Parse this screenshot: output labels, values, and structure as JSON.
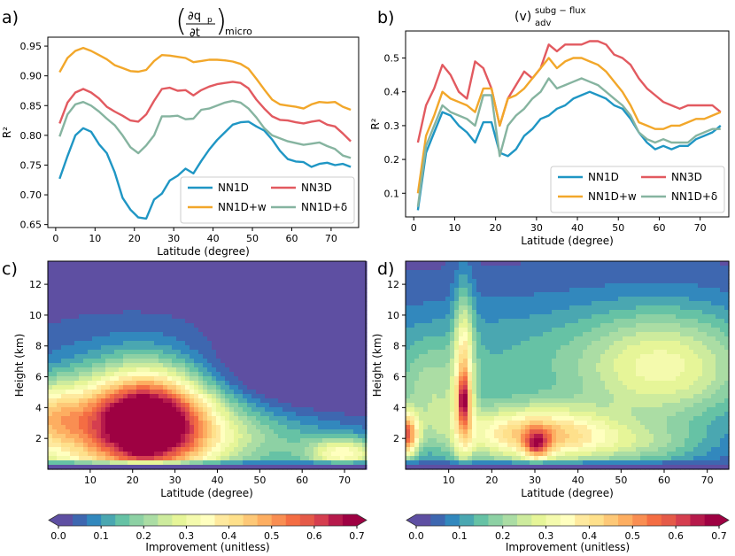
{
  "panels": {
    "a": {
      "letter": "a)",
      "title_num": "∂q",
      "title_sub": "p",
      "title_den": "∂t",
      "title_tag": "micro"
    },
    "b": {
      "letter": "b)",
      "title_main": "(v)",
      "title_sup": "subg − flux",
      "title_sub": "adv"
    },
    "c": {
      "letter": "c)"
    },
    "d": {
      "letter": "d)"
    }
  },
  "colors": {
    "NN1D": "#1f96c4",
    "NN3D": "#e25a60",
    "NN1D+w": "#f2a72a",
    "NN1D+δ": "#86b4a0"
  },
  "chart_data": [
    {
      "id": "a",
      "type": "line",
      "xlabel": "Latitude (degree)",
      "ylabel": "R²",
      "xlim": [
        -2,
        77
      ],
      "ylim": [
        0.645,
        0.965
      ],
      "xticks": [
        0,
        10,
        20,
        30,
        40,
        50,
        60,
        70
      ],
      "yticks": [
        0.65,
        0.7,
        0.75,
        0.8,
        0.85,
        0.9,
        0.95
      ],
      "ytick_labels": [
        "0.65",
        "0.70",
        "0.75",
        "0.80",
        "0.85",
        "0.90",
        "0.95"
      ],
      "legend": [
        "NN1D",
        "NN3D",
        "NN1D+w",
        "NN1D+δ"
      ],
      "x": [
        1,
        3,
        5,
        7,
        9,
        11,
        13,
        15,
        17,
        19,
        21,
        23,
        25,
        27,
        29,
        31,
        33,
        35,
        37,
        39,
        41,
        43,
        45,
        47,
        49,
        51,
        53,
        55,
        57,
        59,
        61,
        63,
        65,
        67,
        69,
        71,
        73,
        75
      ],
      "series": [
        {
          "name": "NN1D",
          "values": [
            0.727,
            0.765,
            0.8,
            0.812,
            0.806,
            0.785,
            0.77,
            0.738,
            0.695,
            0.675,
            0.662,
            0.66,
            0.692,
            0.702,
            0.724,
            0.732,
            0.744,
            0.736,
            0.757,
            0.776,
            0.792,
            0.805,
            0.818,
            0.822,
            0.823,
            0.815,
            0.808,
            0.793,
            0.774,
            0.76,
            0.756,
            0.755,
            0.747,
            0.752,
            0.754,
            0.75,
            0.752,
            0.747
          ]
        },
        {
          "name": "NN3D",
          "values": [
            0.82,
            0.855,
            0.872,
            0.878,
            0.872,
            0.862,
            0.848,
            0.84,
            0.833,
            0.825,
            0.823,
            0.835,
            0.858,
            0.878,
            0.88,
            0.875,
            0.876,
            0.867,
            0.876,
            0.882,
            0.886,
            0.888,
            0.89,
            0.888,
            0.879,
            0.86,
            0.845,
            0.832,
            0.826,
            0.825,
            0.822,
            0.82,
            0.823,
            0.825,
            0.818,
            0.815,
            0.803,
            0.79
          ]
        },
        {
          "name": "NN1D+w",
          "values": [
            0.906,
            0.93,
            0.942,
            0.947,
            0.942,
            0.935,
            0.928,
            0.918,
            0.913,
            0.908,
            0.907,
            0.91,
            0.925,
            0.935,
            0.934,
            0.932,
            0.93,
            0.923,
            0.925,
            0.927,
            0.927,
            0.926,
            0.924,
            0.92,
            0.912,
            0.895,
            0.877,
            0.86,
            0.852,
            0.85,
            0.848,
            0.845,
            0.852,
            0.856,
            0.855,
            0.856,
            0.848,
            0.843
          ]
        },
        {
          "name": "NN1D+δ",
          "values": [
            0.798,
            0.835,
            0.852,
            0.856,
            0.85,
            0.84,
            0.828,
            0.817,
            0.8,
            0.78,
            0.77,
            0.783,
            0.8,
            0.832,
            0.832,
            0.833,
            0.827,
            0.828,
            0.843,
            0.845,
            0.85,
            0.855,
            0.858,
            0.855,
            0.845,
            0.83,
            0.812,
            0.8,
            0.795,
            0.79,
            0.787,
            0.784,
            0.786,
            0.788,
            0.782,
            0.777,
            0.766,
            0.762
          ]
        }
      ]
    },
    {
      "id": "b",
      "type": "line",
      "xlabel": "Latitude (degree)",
      "ylabel": "R²",
      "xlim": [
        -2,
        77
      ],
      "ylim": [
        0.03,
        0.58
      ],
      "xticks": [
        0,
        10,
        20,
        30,
        40,
        50,
        60,
        70
      ],
      "yticks": [
        0.1,
        0.2,
        0.3,
        0.4,
        0.5
      ],
      "ytick_labels": [
        "0.1",
        "0.2",
        "0.3",
        "0.4",
        "0.5"
      ],
      "legend": [
        "NN1D",
        "NN3D",
        "NN1D+w",
        "NN1D+δ"
      ],
      "x": [
        1,
        3,
        5,
        7,
        9,
        11,
        13,
        15,
        17,
        19,
        21,
        23,
        25,
        27,
        29,
        31,
        33,
        35,
        37,
        39,
        41,
        43,
        45,
        47,
        49,
        51,
        53,
        55,
        57,
        59,
        61,
        63,
        65,
        67,
        69,
        71,
        73,
        75
      ],
      "series": [
        {
          "name": "NN1D",
          "values": [
            0.05,
            0.22,
            0.28,
            0.34,
            0.33,
            0.3,
            0.28,
            0.25,
            0.31,
            0.31,
            0.22,
            0.21,
            0.23,
            0.27,
            0.29,
            0.32,
            0.33,
            0.35,
            0.36,
            0.38,
            0.39,
            0.4,
            0.39,
            0.38,
            0.36,
            0.35,
            0.32,
            0.28,
            0.25,
            0.23,
            0.24,
            0.23,
            0.24,
            0.24,
            0.26,
            0.27,
            0.28,
            0.3
          ]
        },
        {
          "name": "NN3D",
          "values": [
            0.25,
            0.36,
            0.41,
            0.48,
            0.45,
            0.4,
            0.38,
            0.49,
            0.47,
            0.41,
            0.3,
            0.38,
            0.42,
            0.46,
            0.44,
            0.47,
            0.54,
            0.52,
            0.54,
            0.54,
            0.54,
            0.55,
            0.55,
            0.54,
            0.51,
            0.5,
            0.48,
            0.44,
            0.41,
            0.39,
            0.37,
            0.36,
            0.35,
            0.36,
            0.36,
            0.36,
            0.36,
            0.34
          ]
        },
        {
          "name": "NN1D+w",
          "values": [
            0.1,
            0.27,
            0.33,
            0.4,
            0.38,
            0.37,
            0.36,
            0.34,
            0.41,
            0.41,
            0.3,
            0.38,
            0.39,
            0.41,
            0.44,
            0.47,
            0.5,
            0.47,
            0.49,
            0.5,
            0.5,
            0.49,
            0.48,
            0.46,
            0.43,
            0.4,
            0.36,
            0.31,
            0.3,
            0.29,
            0.29,
            0.3,
            0.3,
            0.31,
            0.32,
            0.32,
            0.33,
            0.34
          ]
        },
        {
          "name": "NN1D+δ",
          "values": [
            0.06,
            0.24,
            0.3,
            0.36,
            0.34,
            0.33,
            0.32,
            0.3,
            0.39,
            0.39,
            0.21,
            0.3,
            0.33,
            0.35,
            0.38,
            0.4,
            0.44,
            0.41,
            0.42,
            0.43,
            0.44,
            0.43,
            0.42,
            0.4,
            0.38,
            0.36,
            0.33,
            0.28,
            0.26,
            0.25,
            0.26,
            0.25,
            0.25,
            0.25,
            0.27,
            0.28,
            0.29,
            0.29
          ]
        }
      ]
    },
    {
      "id": "c",
      "type": "heatmap",
      "xlabel": "Latitude (degree)",
      "ylabel": "Height (km)",
      "xlim": [
        0,
        75
      ],
      "ylim": [
        0,
        13.5
      ],
      "xticks": [
        10,
        20,
        30,
        40,
        50,
        60,
        70
      ],
      "yticks": [
        2,
        4,
        6,
        8,
        10,
        12
      ],
      "colorbar": {
        "label": "Improvement (unitless)",
        "range": [
          0,
          0.7
        ],
        "ticks": [
          0,
          0.1,
          0.2,
          0.3,
          0.4,
          0.5,
          0.6,
          0.7
        ],
        "tick_labels": [
          "0.0",
          "0.1",
          "0.2",
          "0.3",
          "0.4",
          "0.5",
          "0.6",
          "0.7"
        ],
        "palette": [
          "#5e4fa2",
          "#3e67b0",
          "#3288bd",
          "#4aa7b1",
          "#66c2a5",
          "#8dd1a4",
          "#abdda4",
          "#cdeb9d",
          "#e6f598",
          "#f4faad",
          "#ffffbf",
          "#fee99e",
          "#fee08b",
          "#fdc877",
          "#fdae61",
          "#f98e52",
          "#f46d43",
          "#e55a48",
          "#d53e4f",
          "#b61a4b",
          "#9e0142"
        ]
      },
      "blobs": [
        {
          "x": 35,
          "y": 6.0,
          "sx": 45,
          "sy": 1.6,
          "a": -0.09
        },
        {
          "x": 0,
          "y": 3.5,
          "sx": 5,
          "sy": 1.5,
          "a": 0.15
        },
        {
          "x": 10,
          "y": 3.0,
          "sx": 15,
          "sy": 2.8,
          "a": 0.4
        },
        {
          "x": 24,
          "y": 3.2,
          "sx": 9,
          "sy": 2.4,
          "a": 0.52
        },
        {
          "x": 22,
          "y": 2.6,
          "sx": 2.3,
          "sy": 0.8,
          "a": 0.34
        },
        {
          "x": 34,
          "y": 3.0,
          "sx": 12,
          "sy": 2.6,
          "a": 0.18
        },
        {
          "x": 52,
          "y": 1.8,
          "sx": 18,
          "sy": 1.5,
          "a": 0.12
        },
        {
          "x": 70,
          "y": 1.0,
          "sx": 6,
          "sy": 0.7,
          "a": 0.3
        }
      ]
    },
    {
      "id": "d",
      "type": "heatmap",
      "xlabel": "Latitude (degree)",
      "ylabel": "Height (km)",
      "xlim": [
        0,
        75
      ],
      "ylim": [
        0,
        13.5
      ],
      "xticks": [
        10,
        20,
        30,
        40,
        50,
        60,
        70
      ],
      "yticks": [
        2,
        4,
        6,
        8,
        10,
        12
      ],
      "colorbar": {
        "label": "Improvement (unitless)",
        "range": [
          0,
          0.7
        ],
        "ticks": [
          0,
          0.1,
          0.2,
          0.3,
          0.4,
          0.5,
          0.6,
          0.7
        ],
        "tick_labels": [
          "0.0",
          "0.1",
          "0.2",
          "0.3",
          "0.4",
          "0.5",
          "0.6",
          "0.7"
        ],
        "palette": [
          "#5e4fa2",
          "#3e67b0",
          "#3288bd",
          "#4aa7b1",
          "#66c2a5",
          "#8dd1a4",
          "#abdda4",
          "#cdeb9d",
          "#e6f598",
          "#f4faad",
          "#ffffbf",
          "#fee99e",
          "#fee08b",
          "#fdc877",
          "#fdae61",
          "#f98e52",
          "#f46d43",
          "#e55a48",
          "#d53e4f",
          "#b61a4b",
          "#9e0142"
        ]
      },
      "blobs": [
        {
          "x": 40,
          "y": 7.0,
          "sx": 45,
          "sy": 3.2,
          "a": 0.13
        },
        {
          "x": 60,
          "y": 6.5,
          "sx": 13,
          "sy": 2.6,
          "a": 0.2
        },
        {
          "x": 6,
          "y": 4.5,
          "sx": 6,
          "sy": 2.5,
          "a": 0.14
        },
        {
          "x": 13.5,
          "y": 6.0,
          "sx": 1.6,
          "sy": 3.8,
          "a": 0.3
        },
        {
          "x": 13.5,
          "y": 4.5,
          "sx": 1.0,
          "sy": 1.0,
          "a": 0.28
        },
        {
          "x": 30,
          "y": 2.2,
          "sx": 13,
          "sy": 1.3,
          "a": 0.42
        },
        {
          "x": 30.5,
          "y": 1.6,
          "sx": 2.0,
          "sy": 0.7,
          "a": 0.28
        },
        {
          "x": 0,
          "y": 2.2,
          "sx": 2.0,
          "sy": 1.0,
          "a": 0.5
        },
        {
          "x": 55,
          "y": 1.5,
          "sx": 12,
          "sy": 1.0,
          "a": 0.12
        }
      ]
    }
  ]
}
